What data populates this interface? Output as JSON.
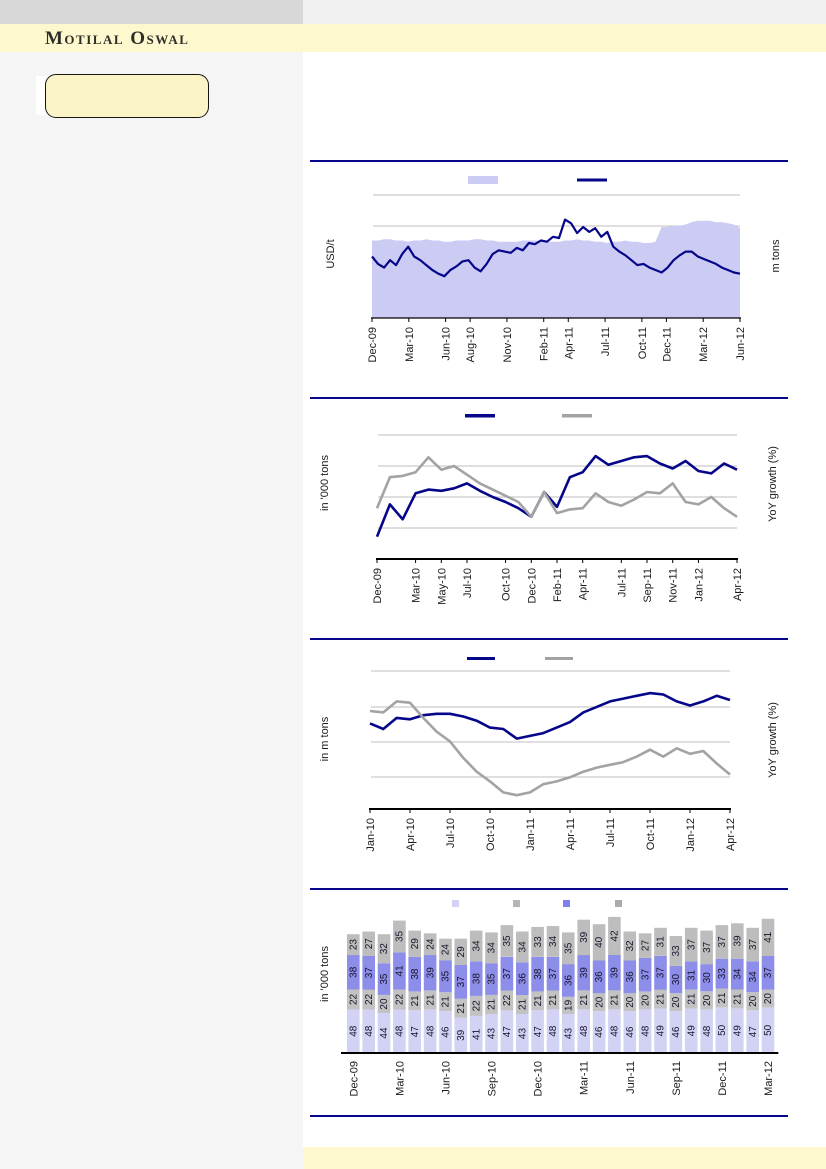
{
  "header": {
    "brand": "Motilal Oswal"
  },
  "colors": {
    "accent_navy": "#06068a",
    "line_gray": "#a3a3a3",
    "area_lavender": "#cbcbf4",
    "bar_light_lavender": "#d2d2f4",
    "bar_gray": "#c2c2c2",
    "bar_purple": "#8d8dea",
    "bar_top_gray": "#bdbdbd",
    "band_yellow": "#fdf8ce",
    "callout_yellow": "#fbf4c6",
    "gridline_gray": "#bfbfbf"
  },
  "chart_data": [
    {
      "type": "area",
      "note": "area series with overlaid line; no y-axis numeric tick labels visible; values are % of plot height",
      "x_range": [
        "Dec-09",
        "Jun-12"
      ],
      "months_total": 31,
      "x_tick_labels": [
        "Dec-09",
        "Mar-10",
        "Jun-10",
        "Aug-10",
        "Nov-10",
        "Feb-11",
        "Apr-11",
        "Jul-11",
        "Oct-11",
        "Dec-11",
        "Mar-12",
        "Jun-12"
      ],
      "x_tick_month_index": [
        0,
        3,
        6,
        8,
        11,
        14,
        16,
        19,
        22,
        24,
        27,
        30
      ],
      "ylabel_left": "USD/t",
      "ylabel_right": "m tons",
      "y_tick_labels": [],
      "legend": {
        "labels_visible": false,
        "swatches": [
          {
            "name": "volume-area-swatch",
            "style": "area",
            "color": "#cbcbf4"
          },
          {
            "name": "price-line-swatch",
            "style": "line",
            "color": "#06068a"
          }
        ]
      },
      "series": [
        {
          "name": "volume-area",
          "style": "area",
          "color": "#cbcbf4",
          "values_pct": [
            63,
            63,
            64,
            64,
            63,
            63,
            62,
            63,
            63,
            64,
            63,
            63,
            62,
            62,
            63,
            63,
            63,
            64,
            64,
            63,
            63,
            62,
            62,
            62,
            62,
            63,
            63,
            63,
            63,
            62,
            62,
            62,
            63,
            63,
            64,
            63,
            63,
            62,
            62,
            61,
            62,
            62,
            63,
            62,
            62,
            61,
            61,
            62,
            74,
            74,
            75,
            75,
            76,
            78,
            79,
            79,
            79,
            78,
            78,
            77,
            76,
            73
          ]
        },
        {
          "name": "price-line",
          "style": "line",
          "color": "#06068a",
          "values_pct": [
            50,
            44,
            41,
            47,
            43,
            52,
            58,
            50,
            47,
            43,
            39,
            36,
            34,
            39,
            42,
            46,
            47,
            41,
            38,
            44,
            52,
            55,
            54,
            53,
            57,
            55,
            61,
            60,
            63,
            62,
            66,
            65,
            80,
            77,
            69,
            74,
            70,
            73,
            66,
            70,
            58,
            54,
            51,
            47,
            43,
            44,
            41,
            39,
            37,
            41,
            47,
            51,
            54,
            54,
            50,
            48,
            46,
            44,
            41,
            39,
            37,
            36
          ]
        }
      ]
    },
    {
      "type": "line",
      "note": "two monthly lines; no y-axis numeric tick labels visible; values are % of plot height",
      "x_range": [
        "Dec-09",
        "Apr-12"
      ],
      "months_total": 29,
      "x_tick_labels": [
        "Dec-09",
        "Mar-10",
        "May-10",
        "Jul-10",
        "Oct-10",
        "Dec-10",
        "Feb-11",
        "Apr-11",
        "Jul-11",
        "Sep-11",
        "Nov-11",
        "Jan-12",
        "Apr-12"
      ],
      "x_tick_month_index": [
        0,
        3,
        5,
        7,
        10,
        12,
        14,
        16,
        19,
        21,
        23,
        25,
        28
      ],
      "ylabel_left": "in '000 tons",
      "ylabel_right": "YoY growth (%)",
      "y_tick_labels": [],
      "legend": {
        "labels_visible": false,
        "swatches": [
          {
            "name": "navy-line-swatch",
            "style": "line",
            "color": "#06068a"
          },
          {
            "name": "gray-line-swatch",
            "style": "line",
            "color": "#a3a3a3"
          }
        ]
      },
      "series": [
        {
          "name": "navy-line",
          "style": "line",
          "color": "#06068a",
          "values_pct": [
            18,
            44,
            32,
            53,
            56,
            55,
            57,
            61,
            55,
            50,
            46,
            41,
            34,
            54,
            42,
            66,
            70,
            83,
            76,
            79,
            82,
            83,
            77,
            73,
            79,
            71,
            69,
            77,
            72
          ]
        },
        {
          "name": "gray-line",
          "style": "line",
          "color": "#a3a3a3",
          "values_pct": [
            41,
            66,
            67,
            70,
            82,
            72,
            75,
            68,
            61,
            56,
            51,
            46,
            34,
            54,
            37,
            40,
            41,
            53,
            46,
            43,
            48,
            54,
            53,
            61,
            46,
            44,
            50,
            41,
            34
          ]
        }
      ]
    },
    {
      "type": "line",
      "note": "two monthly lines; no y-axis numeric tick labels visible; values are % of plot height",
      "x_range": [
        "Jan-10",
        "Apr-12"
      ],
      "months_total": 28,
      "x_tick_labels": [
        "Jan-10",
        "Apr-10",
        "Jul-10",
        "Oct-10",
        "Jan-11",
        "Apr-11",
        "Jul-11",
        "Oct-11",
        "Jan-12",
        "Apr-12"
      ],
      "x_tick_month_index": [
        0,
        3,
        6,
        9,
        12,
        15,
        18,
        21,
        24,
        27
      ],
      "ylabel_left": "in m tons",
      "ylabel_right": "YoY growth (%)",
      "y_tick_labels": [],
      "legend": {
        "labels_visible": false,
        "swatches": [
          {
            "name": "navy-line-swatch",
            "style": "line",
            "color": "#06068a"
          },
          {
            "name": "gray-line-swatch",
            "style": "line",
            "color": "#a3a3a3"
          }
        ]
      },
      "series": [
        {
          "name": "navy-line",
          "style": "line",
          "color": "#06068a",
          "values_pct": [
            62,
            58,
            66,
            65,
            68,
            69,
            69,
            67,
            64,
            59,
            58,
            51,
            53,
            55,
            59,
            63,
            70,
            74,
            78,
            80,
            82,
            84,
            83,
            78,
            75,
            78,
            82,
            79
          ]
        },
        {
          "name": "gray-line",
          "style": "line",
          "color": "#a3a3a3",
          "values_pct": [
            71,
            70,
            78,
            77,
            66,
            56,
            49,
            37,
            27,
            20,
            12,
            10,
            12,
            18,
            20,
            23,
            27,
            30,
            32,
            34,
            38,
            43,
            38,
            44,
            40,
            42,
            33,
            25
          ]
        }
      ]
    },
    {
      "type": "stacked-bar",
      "note": "monthly stacked bars with value labels inside segments; legend swatches shown without text",
      "categories": [
        "Dec-09",
        "Jan-10",
        "Feb-10",
        "Mar-10",
        "Apr-10",
        "May-10",
        "Jun-10",
        "Jul-10",
        "Aug-10",
        "Sep-10",
        "Oct-10",
        "Nov-10",
        "Dec-10",
        "Jan-11",
        "Feb-11",
        "Mar-11",
        "Apr-11",
        "May-11",
        "Jun-11",
        "Jul-11",
        "Aug-11",
        "Sep-11",
        "Oct-11",
        "Nov-11",
        "Dec-11",
        "Jan-12",
        "Feb-12",
        "Mar-12"
      ],
      "x_tick_labels": [
        "Dec-09",
        "Mar-10",
        "Jun-10",
        "Sep-10",
        "Dec-10",
        "Mar-11",
        "Jun-11",
        "Sep-11",
        "Dec-11",
        "Mar-12"
      ],
      "x_tick_every_n": 3,
      "ylabel_left": "in '000 tons",
      "value_labels_shown": true,
      "legend": {
        "labels_visible": false,
        "swatches": [
          {
            "name": "segment-1-swatch",
            "color": "#d2d2f4"
          },
          {
            "name": "segment-2-swatch",
            "color": "#b5b5b5"
          },
          {
            "name": "segment-3-swatch",
            "color": "#7f7ff0"
          },
          {
            "name": "segment-4-swatch",
            "color": "#ababab"
          }
        ]
      },
      "series": [
        {
          "name": "segment-1-bottom",
          "color": "#d2d2f4",
          "values": [
            48,
            48,
            44,
            48,
            47,
            48,
            46,
            39,
            41,
            43,
            47,
            43,
            47,
            48,
            43,
            48,
            46,
            48,
            46,
            48,
            49,
            46,
            49,
            48,
            50,
            49,
            47,
            50
          ]
        },
        {
          "name": "segment-2",
          "color": "#c2c2c2",
          "values": [
            22,
            22,
            20,
            22,
            21,
            21,
            21,
            21,
            22,
            21,
            22,
            21,
            21,
            21,
            19,
            21,
            20,
            21,
            20,
            20,
            21,
            20,
            21,
            20,
            21,
            21,
            20,
            20
          ]
        },
        {
          "name": "segment-3",
          "color": "#8d8dea",
          "values": [
            38,
            37,
            35,
            41,
            38,
            39,
            35,
            37,
            38,
            35,
            37,
            36,
            38,
            37,
            36,
            39,
            36,
            39,
            36,
            37,
            37,
            30,
            31,
            30,
            33,
            34,
            34,
            37
          ]
        },
        {
          "name": "segment-4-top",
          "color": "#bdbdbd",
          "values": [
            23,
            27,
            32,
            35,
            29,
            24,
            24,
            29,
            34,
            34,
            35,
            34,
            33,
            34,
            35,
            39,
            40,
            42,
            32,
            27,
            31,
            33,
            37,
            37,
            37,
            39,
            37,
            41
          ]
        }
      ]
    }
  ]
}
